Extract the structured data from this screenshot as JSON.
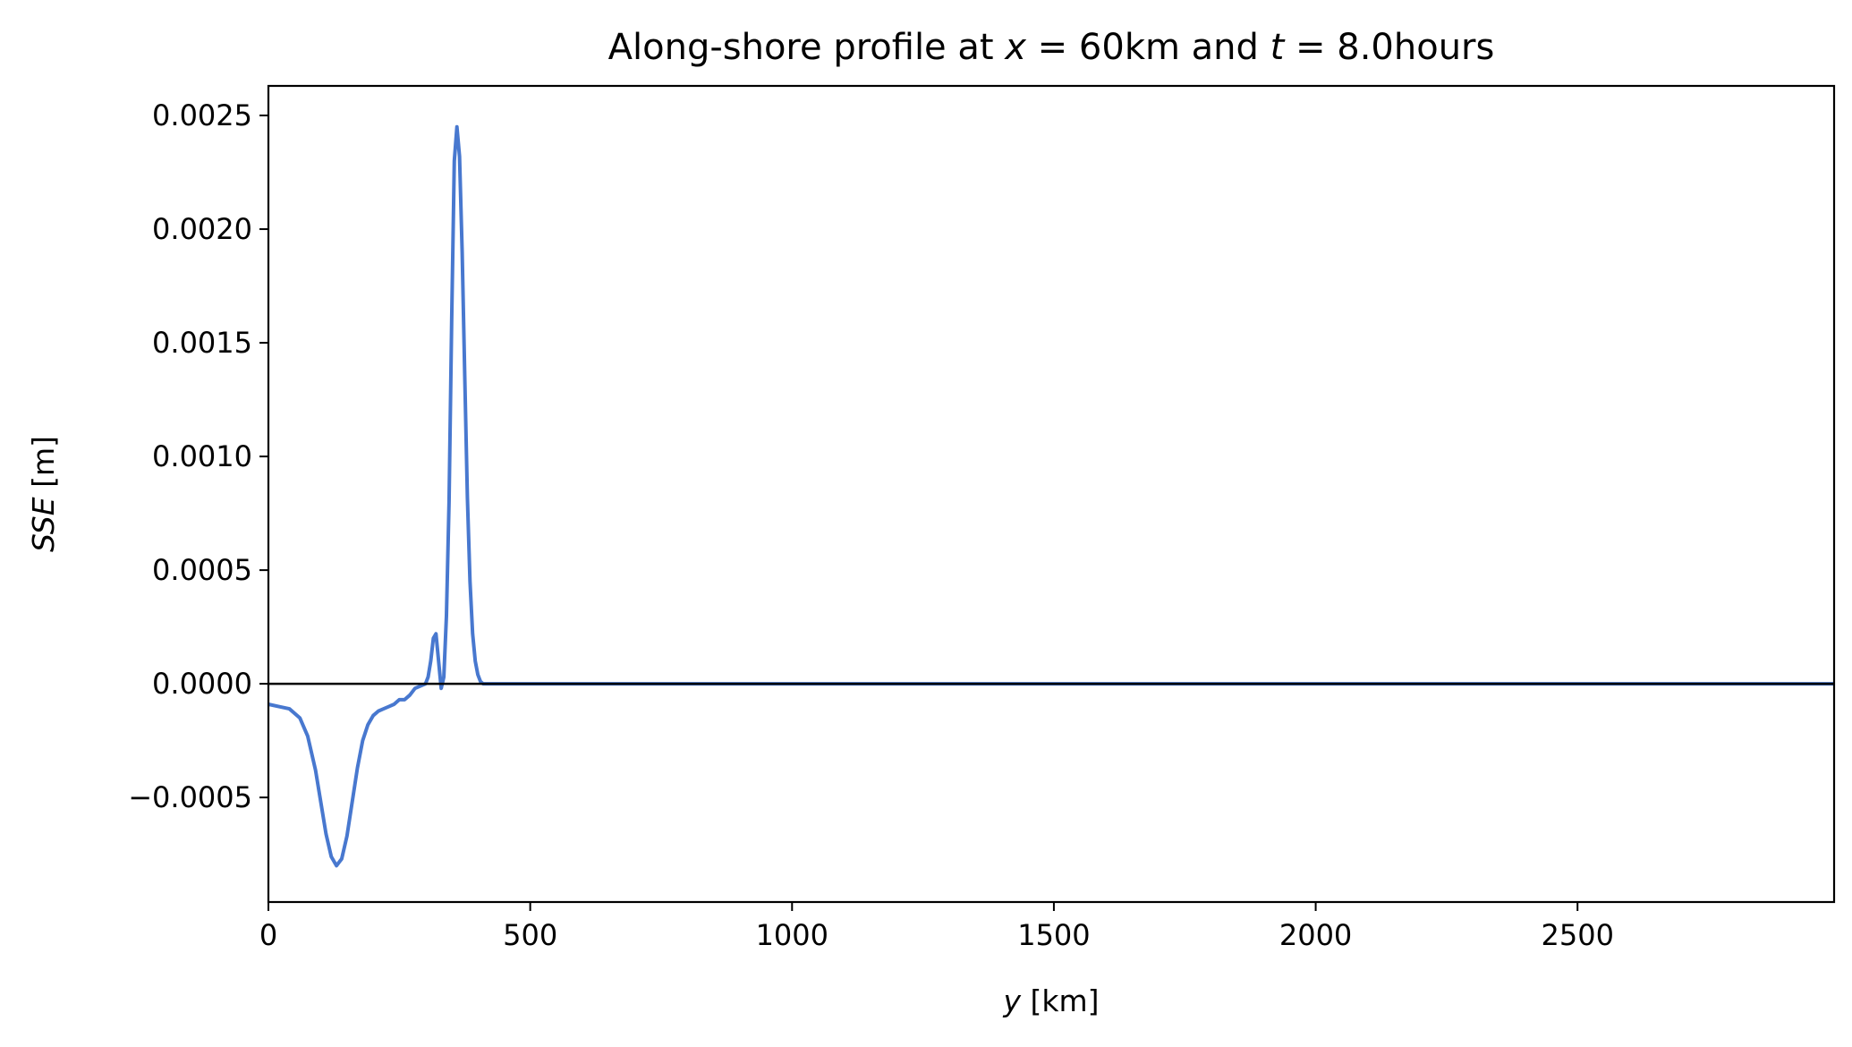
{
  "chart_data": {
    "type": "line",
    "title": {
      "prefix": "Along-shore profile at ",
      "var1": "x",
      "eq1": " = 60km and ",
      "var2": "t",
      "eq2": " = 8.0hours"
    },
    "xlabel": {
      "var": "y",
      "unit": " [km]"
    },
    "ylabel": {
      "var": "SSE",
      "unit": " [m]"
    },
    "xlim": [
      0,
      2990
    ],
    "ylim": [
      -0.00096,
      0.00263
    ],
    "x_ticks": [
      {
        "value": 0,
        "label": "0"
      },
      {
        "value": 500,
        "label": "500"
      },
      {
        "value": 1000,
        "label": "1000"
      },
      {
        "value": 1500,
        "label": "1500"
      },
      {
        "value": 2000,
        "label": "2000"
      },
      {
        "value": 2500,
        "label": "2500"
      }
    ],
    "y_ticks": [
      {
        "value": -0.0005,
        "label": "−0.0005"
      },
      {
        "value": 0.0,
        "label": "0.0000"
      },
      {
        "value": 0.0005,
        "label": "0.0005"
      },
      {
        "value": 0.001,
        "label": "0.0010"
      },
      {
        "value": 0.0015,
        "label": "0.0015"
      },
      {
        "value": 0.002,
        "label": "0.0020"
      },
      {
        "value": 0.0025,
        "label": "0.0025"
      }
    ],
    "zero_line": 0.0,
    "grid": false,
    "line_color": "#4878cf",
    "zero_line_color": "#000000",
    "series": [
      {
        "x": [
          0,
          20,
          40,
          60,
          75,
          90,
          100,
          110,
          120,
          130,
          140,
          150,
          160,
          170,
          180,
          190,
          200,
          210,
          220,
          230,
          240,
          250,
          260,
          270,
          280,
          290,
          300,
          305,
          310,
          315,
          320,
          325,
          330,
          335,
          340,
          345,
          350,
          355,
          360,
          365,
          370,
          375,
          380,
          385,
          390,
          395,
          400,
          405,
          410,
          415,
          420,
          425,
          430,
          440,
          450,
          460,
          480,
          500,
          600,
          800,
          1000,
          1500,
          2000,
          2500,
          2990
        ],
        "y": [
          -9e-05,
          -0.0001,
          -0.00011,
          -0.00015,
          -0.00023,
          -0.00038,
          -0.00052,
          -0.00066,
          -0.00076,
          -0.0008,
          -0.00077,
          -0.00067,
          -0.00052,
          -0.00037,
          -0.00025,
          -0.00018,
          -0.00014,
          -0.00012,
          -0.00011,
          -0.0001,
          -9e-05,
          -7e-05,
          -7e-05,
          -5e-05,
          -2e-05,
          -1e-05,
          0.0,
          3e-05,
          0.0001,
          0.0002,
          0.00022,
          0.0001,
          -2e-05,
          3e-05,
          0.0003,
          0.0008,
          0.0016,
          0.0023,
          0.00245,
          0.00232,
          0.0019,
          0.00135,
          0.00082,
          0.00045,
          0.00022,
          0.0001,
          4e-05,
          1e-05,
          0.0,
          0.0,
          0.0,
          0.0,
          0.0,
          0.0,
          0.0,
          0.0,
          0.0,
          0.0,
          0.0,
          0.0,
          0.0,
          0.0,
          0.0,
          0.0,
          0.0
        ]
      }
    ]
  }
}
